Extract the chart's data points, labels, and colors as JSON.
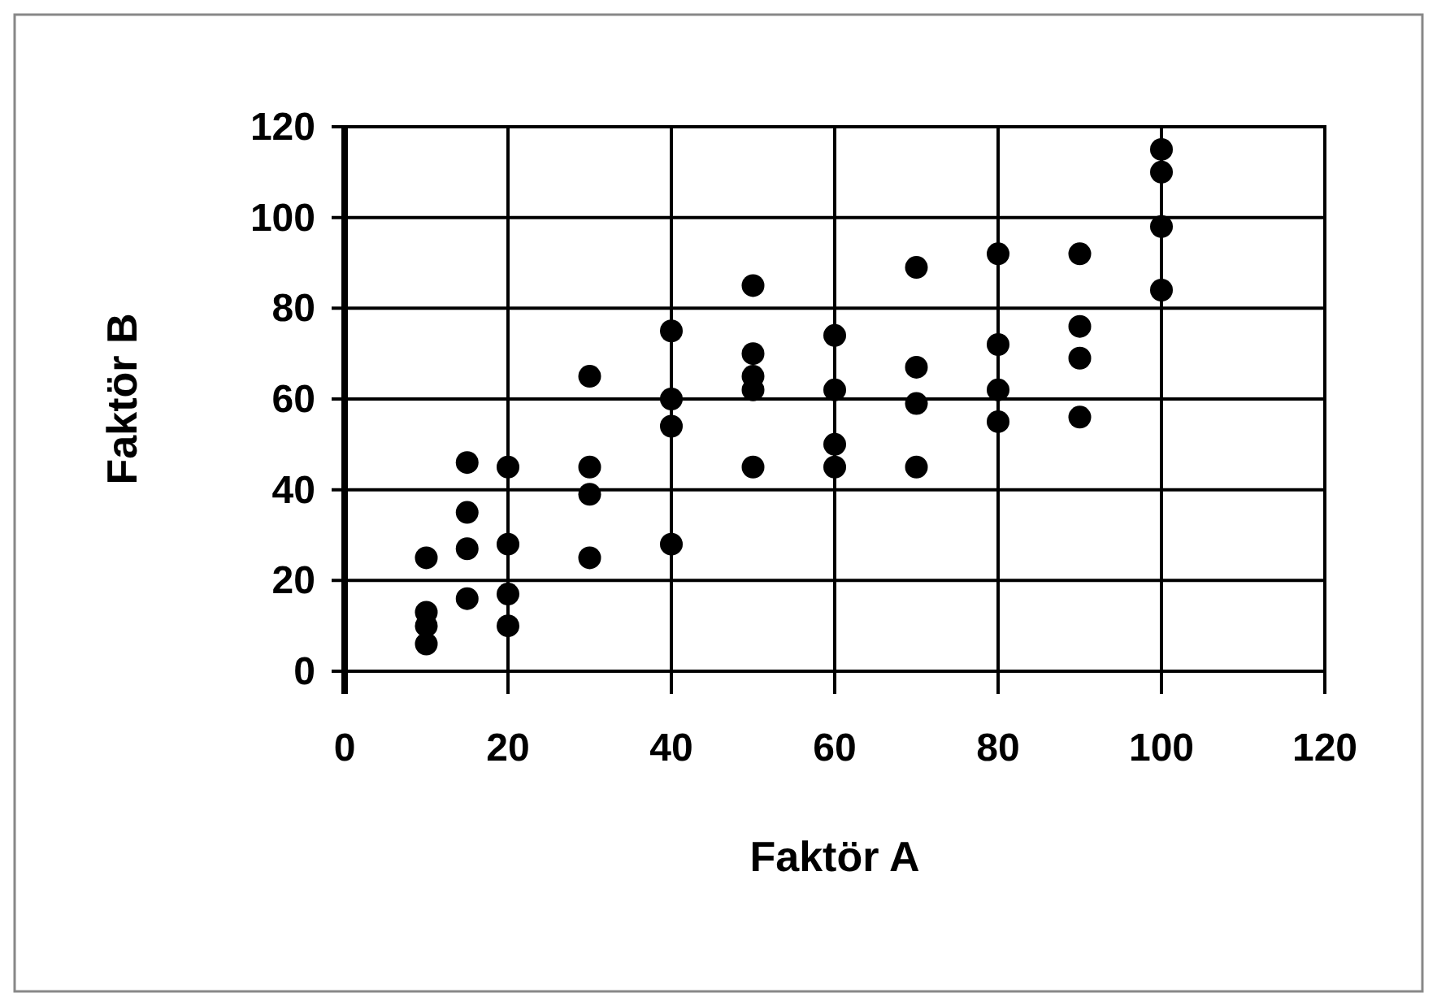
{
  "chart_data": {
    "type": "scatter",
    "xlabel": "Faktör A",
    "ylabel": "Faktör B",
    "x": [
      10,
      10,
      10,
      10,
      15,
      15,
      15,
      15,
      20,
      20,
      20,
      20,
      30,
      30,
      30,
      30,
      40,
      40,
      40,
      40,
      50,
      50,
      50,
      50,
      50,
      60,
      60,
      60,
      60,
      70,
      70,
      70,
      70,
      80,
      80,
      80,
      80,
      90,
      90,
      90,
      90,
      100,
      100,
      100,
      100
    ],
    "values": [
      25,
      13,
      10,
      6,
      46,
      35,
      27,
      16,
      45,
      28,
      17,
      10,
      65,
      45,
      39,
      25,
      75,
      60,
      54,
      28,
      85,
      70,
      65,
      62,
      45,
      74,
      62,
      50,
      45,
      89,
      67,
      59,
      45,
      92,
      72,
      62,
      55,
      92,
      76,
      69,
      56,
      115,
      110,
      98,
      84
    ],
    "color": "#000000",
    "marker": "circle",
    "xlim": [
      0,
      120
    ],
    "ylim": [
      0,
      120
    ],
    "xticks": [
      0,
      20,
      40,
      60,
      80,
      100,
      120
    ],
    "yticks": [
      0,
      20,
      40,
      60,
      80,
      100,
      120
    ],
    "grid": true
  }
}
